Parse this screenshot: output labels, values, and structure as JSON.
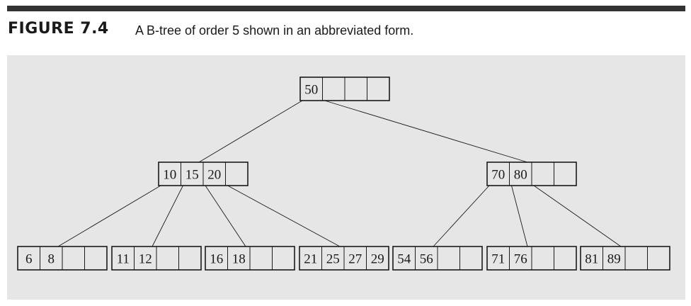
{
  "figure": {
    "label": "FIGURE 7.4",
    "caption": "A B-tree of order 5 shown in an abbreviated form."
  },
  "colors": {
    "panel_background": "#e6e6e6",
    "rule": "#333333",
    "box_stroke": "#1a1a1a",
    "text": "#1a1a1a"
  },
  "tree": {
    "order": 5,
    "root": {
      "keys": [
        "50"
      ]
    },
    "level1": [
      {
        "keys": [
          "10",
          "15",
          "20"
        ]
      },
      {
        "keys": [
          "70",
          "80"
        ]
      }
    ],
    "leaves": [
      {
        "keys": [
          "6",
          "8"
        ]
      },
      {
        "keys": [
          "11",
          "12"
        ]
      },
      {
        "keys": [
          "16",
          "18"
        ]
      },
      {
        "keys": [
          "21",
          "25",
          "27",
          "29"
        ]
      },
      {
        "keys": [
          "54",
          "56"
        ]
      },
      {
        "keys": [
          "71",
          "76"
        ]
      },
      {
        "keys": [
          "81",
          "89"
        ]
      }
    ],
    "edges": [
      {
        "from": "root",
        "slot": 0,
        "to": "level1.0"
      },
      {
        "from": "root",
        "slot": 1,
        "to": "level1.1"
      },
      {
        "from": "level1.0",
        "slot": 0,
        "to": "leaves.0"
      },
      {
        "from": "level1.0",
        "slot": 1,
        "to": "leaves.1"
      },
      {
        "from": "level1.0",
        "slot": 2,
        "to": "leaves.2"
      },
      {
        "from": "level1.0",
        "slot": 3,
        "to": "leaves.3"
      },
      {
        "from": "level1.1",
        "slot": 0,
        "to": "leaves.4"
      },
      {
        "from": "level1.1",
        "slot": 1,
        "to": "leaves.5"
      },
      {
        "from": "level1.1",
        "slot": 2,
        "to": "leaves.6"
      }
    ]
  }
}
